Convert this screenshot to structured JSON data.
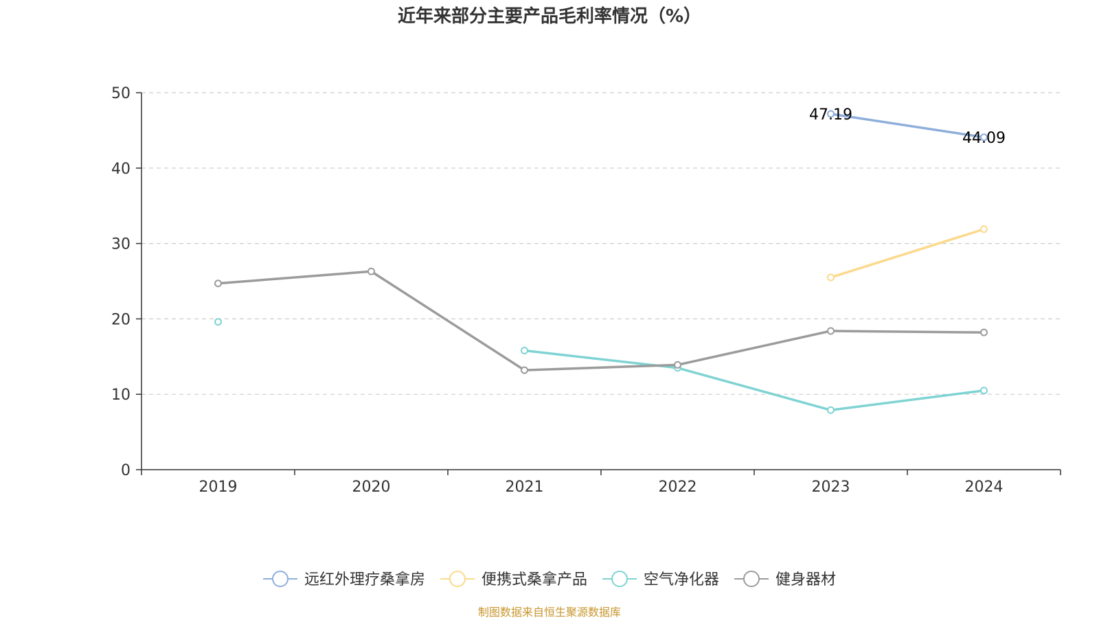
{
  "source_note": "制图数据来自恒生聚源数据库",
  "chart_data": {
    "type": "line",
    "title": "近年来部分主要产品毛利率情况（%）",
    "xlabel": "",
    "ylabel": "",
    "categories": [
      "2019",
      "2020",
      "2021",
      "2022",
      "2023",
      "2024"
    ],
    "ylim": [
      0,
      50
    ],
    "yticks": [
      0,
      10,
      20,
      30,
      40,
      50
    ],
    "grid": true,
    "legend_position": "bottom",
    "series": [
      {
        "name": "远红外理疗桑拿房",
        "color": "#8eaedb",
        "values": [
          null,
          null,
          null,
          null,
          47.19,
          44.09
        ],
        "labels": [
          "",
          "",
          "",
          "",
          "47.19",
          "44.09"
        ]
      },
      {
        "name": "便携式桑拿产品",
        "color": "#fbd98c",
        "values": [
          null,
          null,
          null,
          null,
          25.5,
          31.9
        ]
      },
      {
        "name": "空气净化器",
        "color": "#7fd3d3",
        "values": [
          19.6,
          null,
          15.8,
          13.5,
          7.9,
          10.5
        ]
      },
      {
        "name": "健身器材",
        "color": "#9b9b9b",
        "values": [
          24.7,
          26.3,
          13.2,
          13.9,
          18.4,
          18.2
        ]
      }
    ]
  }
}
